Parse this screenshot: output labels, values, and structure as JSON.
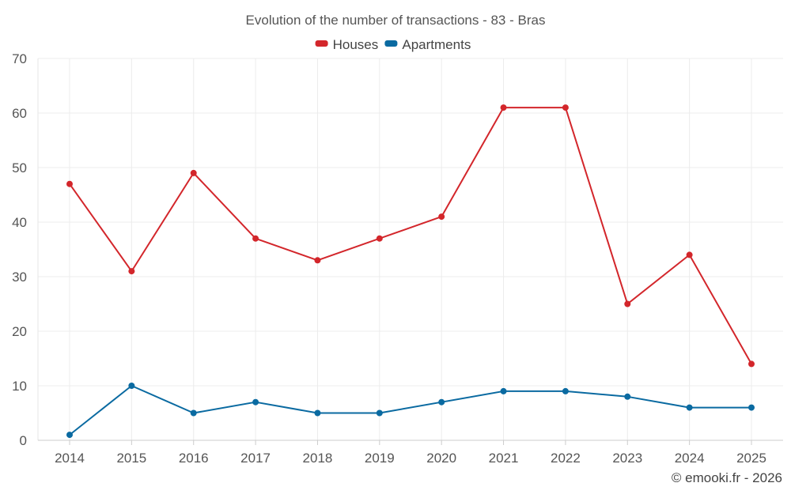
{
  "chart_data": {
    "type": "line",
    "title": "Evolution of the number of transactions - 83 - Bras",
    "categories": [
      "2014",
      "2015",
      "2016",
      "2017",
      "2018",
      "2019",
      "2020",
      "2021",
      "2022",
      "2023",
      "2024",
      "2025"
    ],
    "series": [
      {
        "name": "Houses",
        "color": "#d3262b",
        "values": [
          47,
          31,
          49,
          37,
          33,
          37,
          41,
          61,
          61,
          25,
          34,
          14
        ]
      },
      {
        "name": "Apartments",
        "color": "#0a6aa1",
        "values": [
          1,
          10,
          5,
          7,
          5,
          5,
          7,
          9,
          9,
          8,
          6,
          6
        ]
      }
    ],
    "ylim": [
      0,
      70
    ],
    "yticks": [
      0,
      10,
      20,
      30,
      40,
      50,
      60,
      70
    ],
    "grid": true,
    "legend": "top-center",
    "xlabel": "",
    "ylabel": ""
  },
  "credit": "© emooki.fr - 2026"
}
